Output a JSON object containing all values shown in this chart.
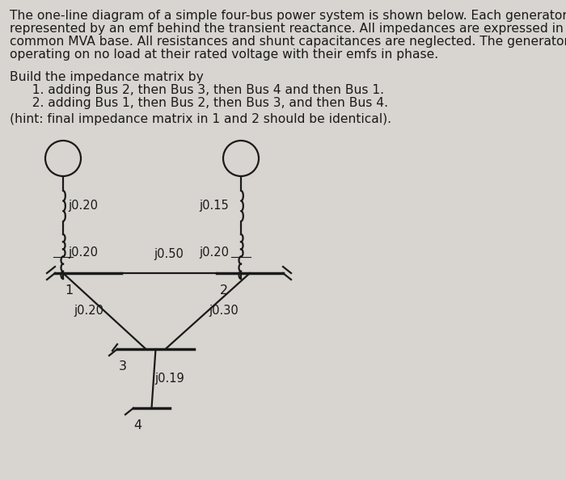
{
  "bg_color": "#d8d5d0",
  "text_color": "#1a1a1a",
  "line1": "The one-line diagram of a simple four-bus power system is shown below. Each generator is",
  "line2": "represented by an emf behind the transient reactance. All impedances are expressed in per unit on a",
  "line3": "common MVA base. All resistances and shunt capacitances are neglected. The generators are",
  "line4": "operating on no load at their rated voltage with their emfs in phase.",
  "line5": "Build the impedance matrix by",
  "line6": "  1. adding Bus 2, then Bus 3, then Bus 4 and then Bus 1.",
  "line7": "  2. adding Bus 1, then Bus 2, then Bus 3, and then Bus 4.",
  "line8": "(hint: final impedance matrix in 1 and 2 should be identical).",
  "imp_gen1": "j0.20",
  "imp_gen2": "j0.15",
  "imp_tr1": "j0.20",
  "imp_tr2": "j0.20",
  "imp_12": "j0.50",
  "imp_13": "j0.20",
  "imp_23": "j0.30",
  "imp_34": "j0.19",
  "bus_labels": [
    "1",
    "2",
    "3",
    "4"
  ],
  "lc": "#1a1a1a",
  "lw": 1.6,
  "bus_lw": 2.5,
  "font_body": 11.2,
  "font_diag": 10.5,
  "font_bus": 11.5
}
